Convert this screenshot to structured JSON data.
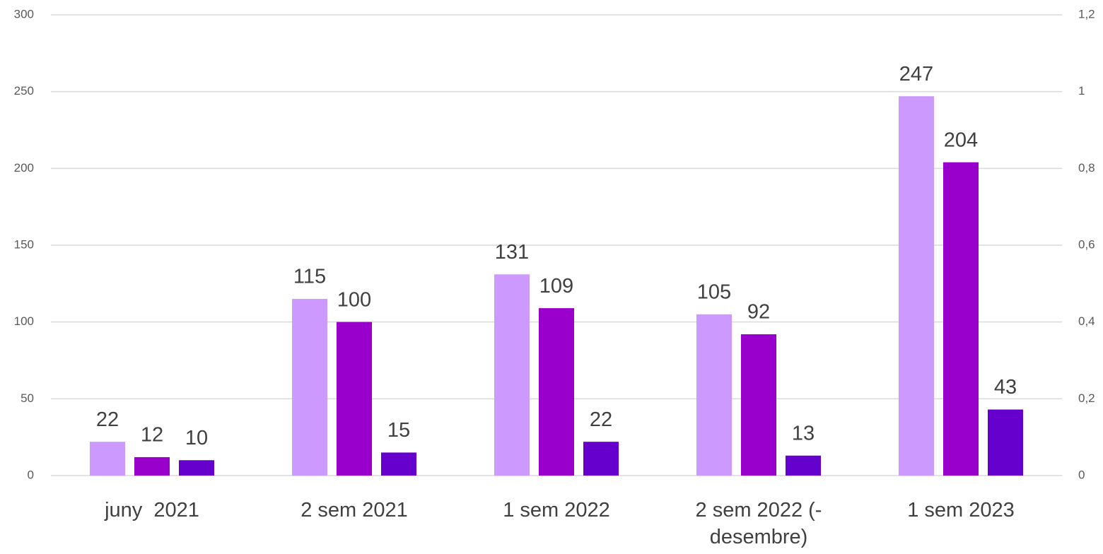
{
  "chart_data": {
    "type": "bar",
    "categories": [
      "juny  2021",
      "2 sem 2021",
      "1 sem 2022",
      "2 sem 2022 (-desembre)",
      "1 sem 2023"
    ],
    "series": [
      {
        "color": "#cc99ff",
        "values": [
          22,
          115,
          131,
          105,
          247
        ]
      },
      {
        "color": "#9900cc",
        "values": [
          12,
          100,
          109,
          92,
          204
        ]
      },
      {
        "color": "#6600cc",
        "values": [
          10,
          15,
          22,
          13,
          43
        ]
      }
    ],
    "ylim": [
      0,
      300
    ],
    "yticks": [
      0,
      50,
      100,
      150,
      200,
      250,
      300
    ],
    "y2lim": [
      0,
      1.2
    ],
    "y2ticks": [
      0,
      {
        "value": 0.2,
        "label": "0,2"
      },
      {
        "value": 0.4,
        "label": "0,4"
      },
      {
        "value": 0.6,
        "label": "0,6"
      },
      {
        "value": 0.8,
        "label": "0,8"
      },
      1,
      {
        "value": 1.2,
        "label": "1,2"
      }
    ],
    "grid": true
  }
}
